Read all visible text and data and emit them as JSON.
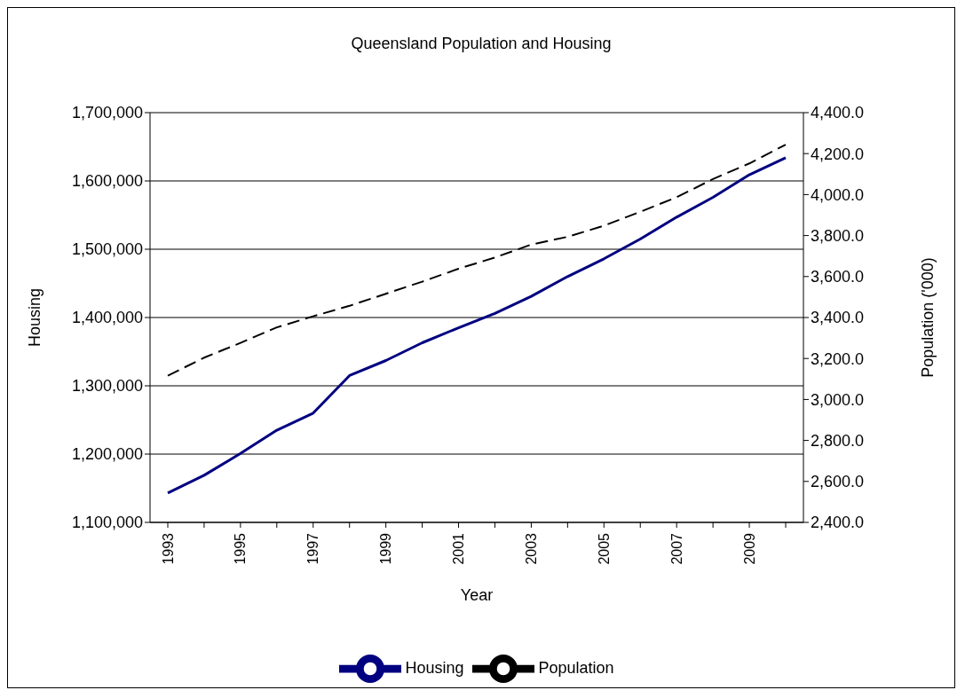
{
  "chart_data": {
    "type": "line",
    "title": "Queensland Population and Housing",
    "xlabel": "Year",
    "ylabel": "Housing",
    "y2label": "Population ('000)",
    "categories": [
      "1993",
      null,
      "1995",
      null,
      "1997",
      null,
      "1999",
      null,
      "2001",
      null,
      "2003",
      null,
      "2005",
      null,
      "2007",
      null,
      "2009",
      null
    ],
    "series": [
      {
        "name": "Housing",
        "color": "#000080",
        "line_style": "solid",
        "values": [
          1143000,
          1169000,
          1201000,
          1235000,
          1260000,
          1315000,
          1337000,
          1363000,
          1385000,
          1406000,
          1431000,
          1460000,
          1486000,
          1515000,
          1547000,
          1576000,
          1609000,
          1634000
        ]
      },
      {
        "name": "Population",
        "color": "#000000",
        "line_style": "dashed",
        "axis": "y2",
        "values": [
          3116,
          3204,
          3276,
          3352,
          3406,
          3457,
          3516,
          3575,
          3638,
          3693,
          3756,
          3794,
          3848,
          3916,
          3987,
          4076,
          4152,
          4244
        ]
      }
    ],
    "ylim": [
      1100000,
      1700000
    ],
    "yticks": [
      {
        "value": 1100000,
        "label": "1,100,000"
      },
      {
        "value": 1200000,
        "label": "1,200,000"
      },
      {
        "value": 1300000,
        "label": "1,300,000"
      },
      {
        "value": 1400000,
        "label": "1,400,000"
      },
      {
        "value": 1500000,
        "label": "1,500,000"
      },
      {
        "value": 1600000,
        "label": "1,600,000"
      },
      {
        "value": 1700000,
        "label": "1,700,000"
      }
    ],
    "y2lim": [
      2400,
      4400
    ],
    "y2ticks": [
      {
        "value": 2400,
        "label": "2,400.0"
      },
      {
        "value": 2600,
        "label": "2,600.0"
      },
      {
        "value": 2800,
        "label": "2,800.0"
      },
      {
        "value": 3000,
        "label": "3,000.0"
      },
      {
        "value": 3200,
        "label": "3,200.0"
      },
      {
        "value": 3400,
        "label": "3,400.0"
      },
      {
        "value": 3600,
        "label": "3,600.0"
      },
      {
        "value": 3800,
        "label": "3,800.0"
      },
      {
        "value": 4000,
        "label": "4,000.0"
      },
      {
        "value": 4200,
        "label": "4,200.0"
      },
      {
        "value": 4400,
        "label": "4,400.0"
      }
    ],
    "grid": "y",
    "legend": "bottom",
    "marker": "none"
  }
}
